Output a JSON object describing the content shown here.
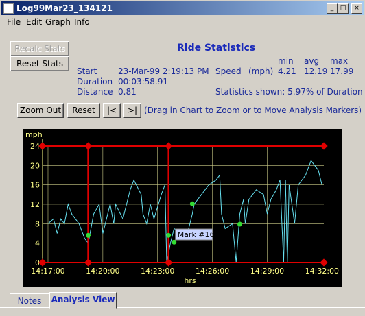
{
  "window": {
    "title": "Log99Mar23_134121"
  },
  "menu": [
    "File",
    "Edit",
    "Graph",
    "Info"
  ],
  "buttons": {
    "recalc": "Recalc Stats",
    "reset_stats": "Reset Stats",
    "zoom_out": "Zoom Out",
    "reset": "Reset",
    "first": "|<",
    "last": ">|"
  },
  "hint": "(Drag in Chart to Zoom or to Move Analysis Markers)",
  "stats": {
    "title": "Ride Statistics",
    "rows": [
      [
        "Start",
        "23-Mar-99 2:19:13 PM"
      ],
      [
        "Duration",
        "00:03:58.91"
      ],
      [
        "Distance",
        "0.81"
      ]
    ],
    "speed_label": "Speed",
    "speed_unit": "(mph)",
    "headers": [
      "min",
      "avg",
      "max"
    ],
    "speed": [
      "4.21",
      "12.19",
      "17.99"
    ],
    "shown": "Statistics shown: 5.97% of Duration"
  },
  "chart": {
    "type": "line",
    "ylabel": "mph",
    "xlabel": "hrs",
    "color": "#66e0f0",
    "grid": true,
    "x": [
      857.0,
      857.3,
      857.5,
      857.7,
      857.9,
      858.1,
      858.3,
      858.7,
      859.0,
      859.2,
      859.5,
      859.8,
      860.0,
      860.2,
      860.4,
      860.6,
      860.7,
      861.1,
      861.5,
      861.7,
      862.1,
      862.2,
      862.4,
      862.6,
      862.8,
      863.2,
      863.4,
      863.5,
      863.7,
      863.9,
      864.3,
      864.7,
      864.9,
      865.0,
      865.4,
      865.8,
      866.2,
      866.4,
      866.5,
      866.7,
      867.1,
      867.3,
      867.5,
      867.7,
      867.8,
      868.0,
      868.4,
      868.8,
      869.0,
      869.2,
      869.5,
      869.7,
      869.9,
      870.0,
      870.1,
      870.2,
      870.5,
      870.7,
      871.1,
      871.4,
      871.8,
      872.0
    ],
    "values": [
      8,
      9,
      6,
      9,
      8,
      12,
      10,
      8,
      5,
      4,
      10,
      12,
      6,
      9,
      12,
      8,
      12,
      9,
      15,
      17,
      14,
      10,
      8,
      12,
      9,
      14,
      16,
      0,
      4,
      7,
      6,
      7,
      10,
      12,
      14,
      16,
      17,
      18,
      10,
      7,
      8,
      0,
      10,
      13,
      8,
      13,
      15,
      14,
      10,
      13,
      15,
      17,
      0,
      17,
      0,
      16,
      8,
      16,
      18,
      21,
      19,
      16
    ],
    "xlim": [
      856.7,
      872.1
    ],
    "ylim": [
      0,
      24
    ],
    "xticks": [
      {
        "value": 857,
        "label": "14:17:00"
      },
      {
        "value": 860,
        "label": "14:20:00"
      },
      {
        "value": 863,
        "label": "14:23:00"
      },
      {
        "value": 866,
        "label": "14:26:00"
      },
      {
        "value": 869,
        "label": "14:29:00"
      },
      {
        "value": 872,
        "label": "14:32:00"
      }
    ],
    "yticks": [
      0,
      4,
      8,
      12,
      16,
      20,
      24
    ],
    "markers": [
      859.2,
      863.6
    ],
    "marker_label": "Mark #16",
    "points": {
      "x": [
        859.2,
        863.6,
        863.9,
        864.9,
        867.5
      ],
      "values": [
        5.6,
        5.6,
        4.2,
        12.1,
        7.9
      ]
    }
  },
  "tabs": [
    "Notes",
    "Analysis View"
  ]
}
